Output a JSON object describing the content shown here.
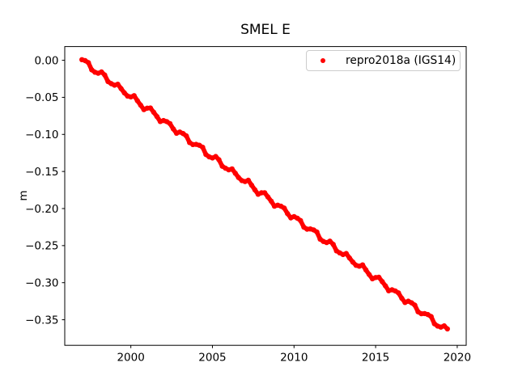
{
  "chart_data": {
    "type": "scatter",
    "title": "SMEL E",
    "xlabel": "",
    "ylabel": "m",
    "xlim": [
      1995.95,
      2020.55
    ],
    "ylim": [
      -0.3845,
      0.0185
    ],
    "xticks": [
      2000,
      2005,
      2010,
      2015,
      2020
    ],
    "yticks": [
      0,
      -0.05,
      -0.1,
      -0.15,
      -0.2,
      -0.25,
      -0.3,
      -0.35
    ],
    "grid": false,
    "legend": {
      "position": "upper right",
      "border_color": "#cccccc",
      "background": "#ffffff"
    },
    "series": [
      {
        "name": "repro2018a (IGS14)",
        "color": "#ff0000",
        "marker": "dot",
        "x_start": 1997.0,
        "x_step": 0.2,
        "x_end": 2019.4,
        "values": [
          0.0008,
          -0.0005,
          -0.0032,
          -0.0129,
          -0.0161,
          -0.0175,
          -0.0157,
          -0.0199,
          -0.0287,
          -0.0315,
          -0.0336,
          -0.0323,
          -0.0382,
          -0.0439,
          -0.0482,
          -0.0494,
          -0.0477,
          -0.0544,
          -0.0605,
          -0.0665,
          -0.0646,
          -0.0644,
          -0.0702,
          -0.0759,
          -0.0826,
          -0.0813,
          -0.0827,
          -0.0854,
          -0.0926,
          -0.0984,
          -0.0967,
          -0.0988,
          -0.102,
          -0.1109,
          -0.1136,
          -0.1134,
          -0.1146,
          -0.1174,
          -0.1271,
          -0.1302,
          -0.1317,
          -0.1298,
          -0.1341,
          -0.1429,
          -0.1456,
          -0.1478,
          -0.1465,
          -0.1524,
          -0.1581,
          -0.1623,
          -0.1636,
          -0.1619,
          -0.1685,
          -0.1747,
          -0.1807,
          -0.1788,
          -0.1786,
          -0.1843,
          -0.1901,
          -0.1968,
          -0.1954,
          -0.1969,
          -0.1995,
          -0.2068,
          -0.2126,
          -0.2108,
          -0.213,
          -0.2162,
          -0.2251,
          -0.2278,
          -0.2275,
          -0.2288,
          -0.2316,
          -0.2412,
          -0.2444,
          -0.2459,
          -0.244,
          -0.2483,
          -0.257,
          -0.2598,
          -0.262,
          -0.2606,
          -0.2666,
          -0.2722,
          -0.2765,
          -0.2778,
          -0.276,
          -0.2827,
          -0.2889,
          -0.2948,
          -0.293,
          -0.2927,
          -0.2985,
          -0.3043,
          -0.3109,
          -0.3096,
          -0.3111,
          -0.3137,
          -0.321,
          -0.3267,
          -0.325,
          -0.3272,
          -0.3303,
          -0.3393,
          -0.3419,
          -0.3417,
          -0.343,
          -0.3457,
          -0.3554,
          -0.3586,
          -0.36,
          -0.3582,
          -0.3624
        ]
      }
    ]
  }
}
